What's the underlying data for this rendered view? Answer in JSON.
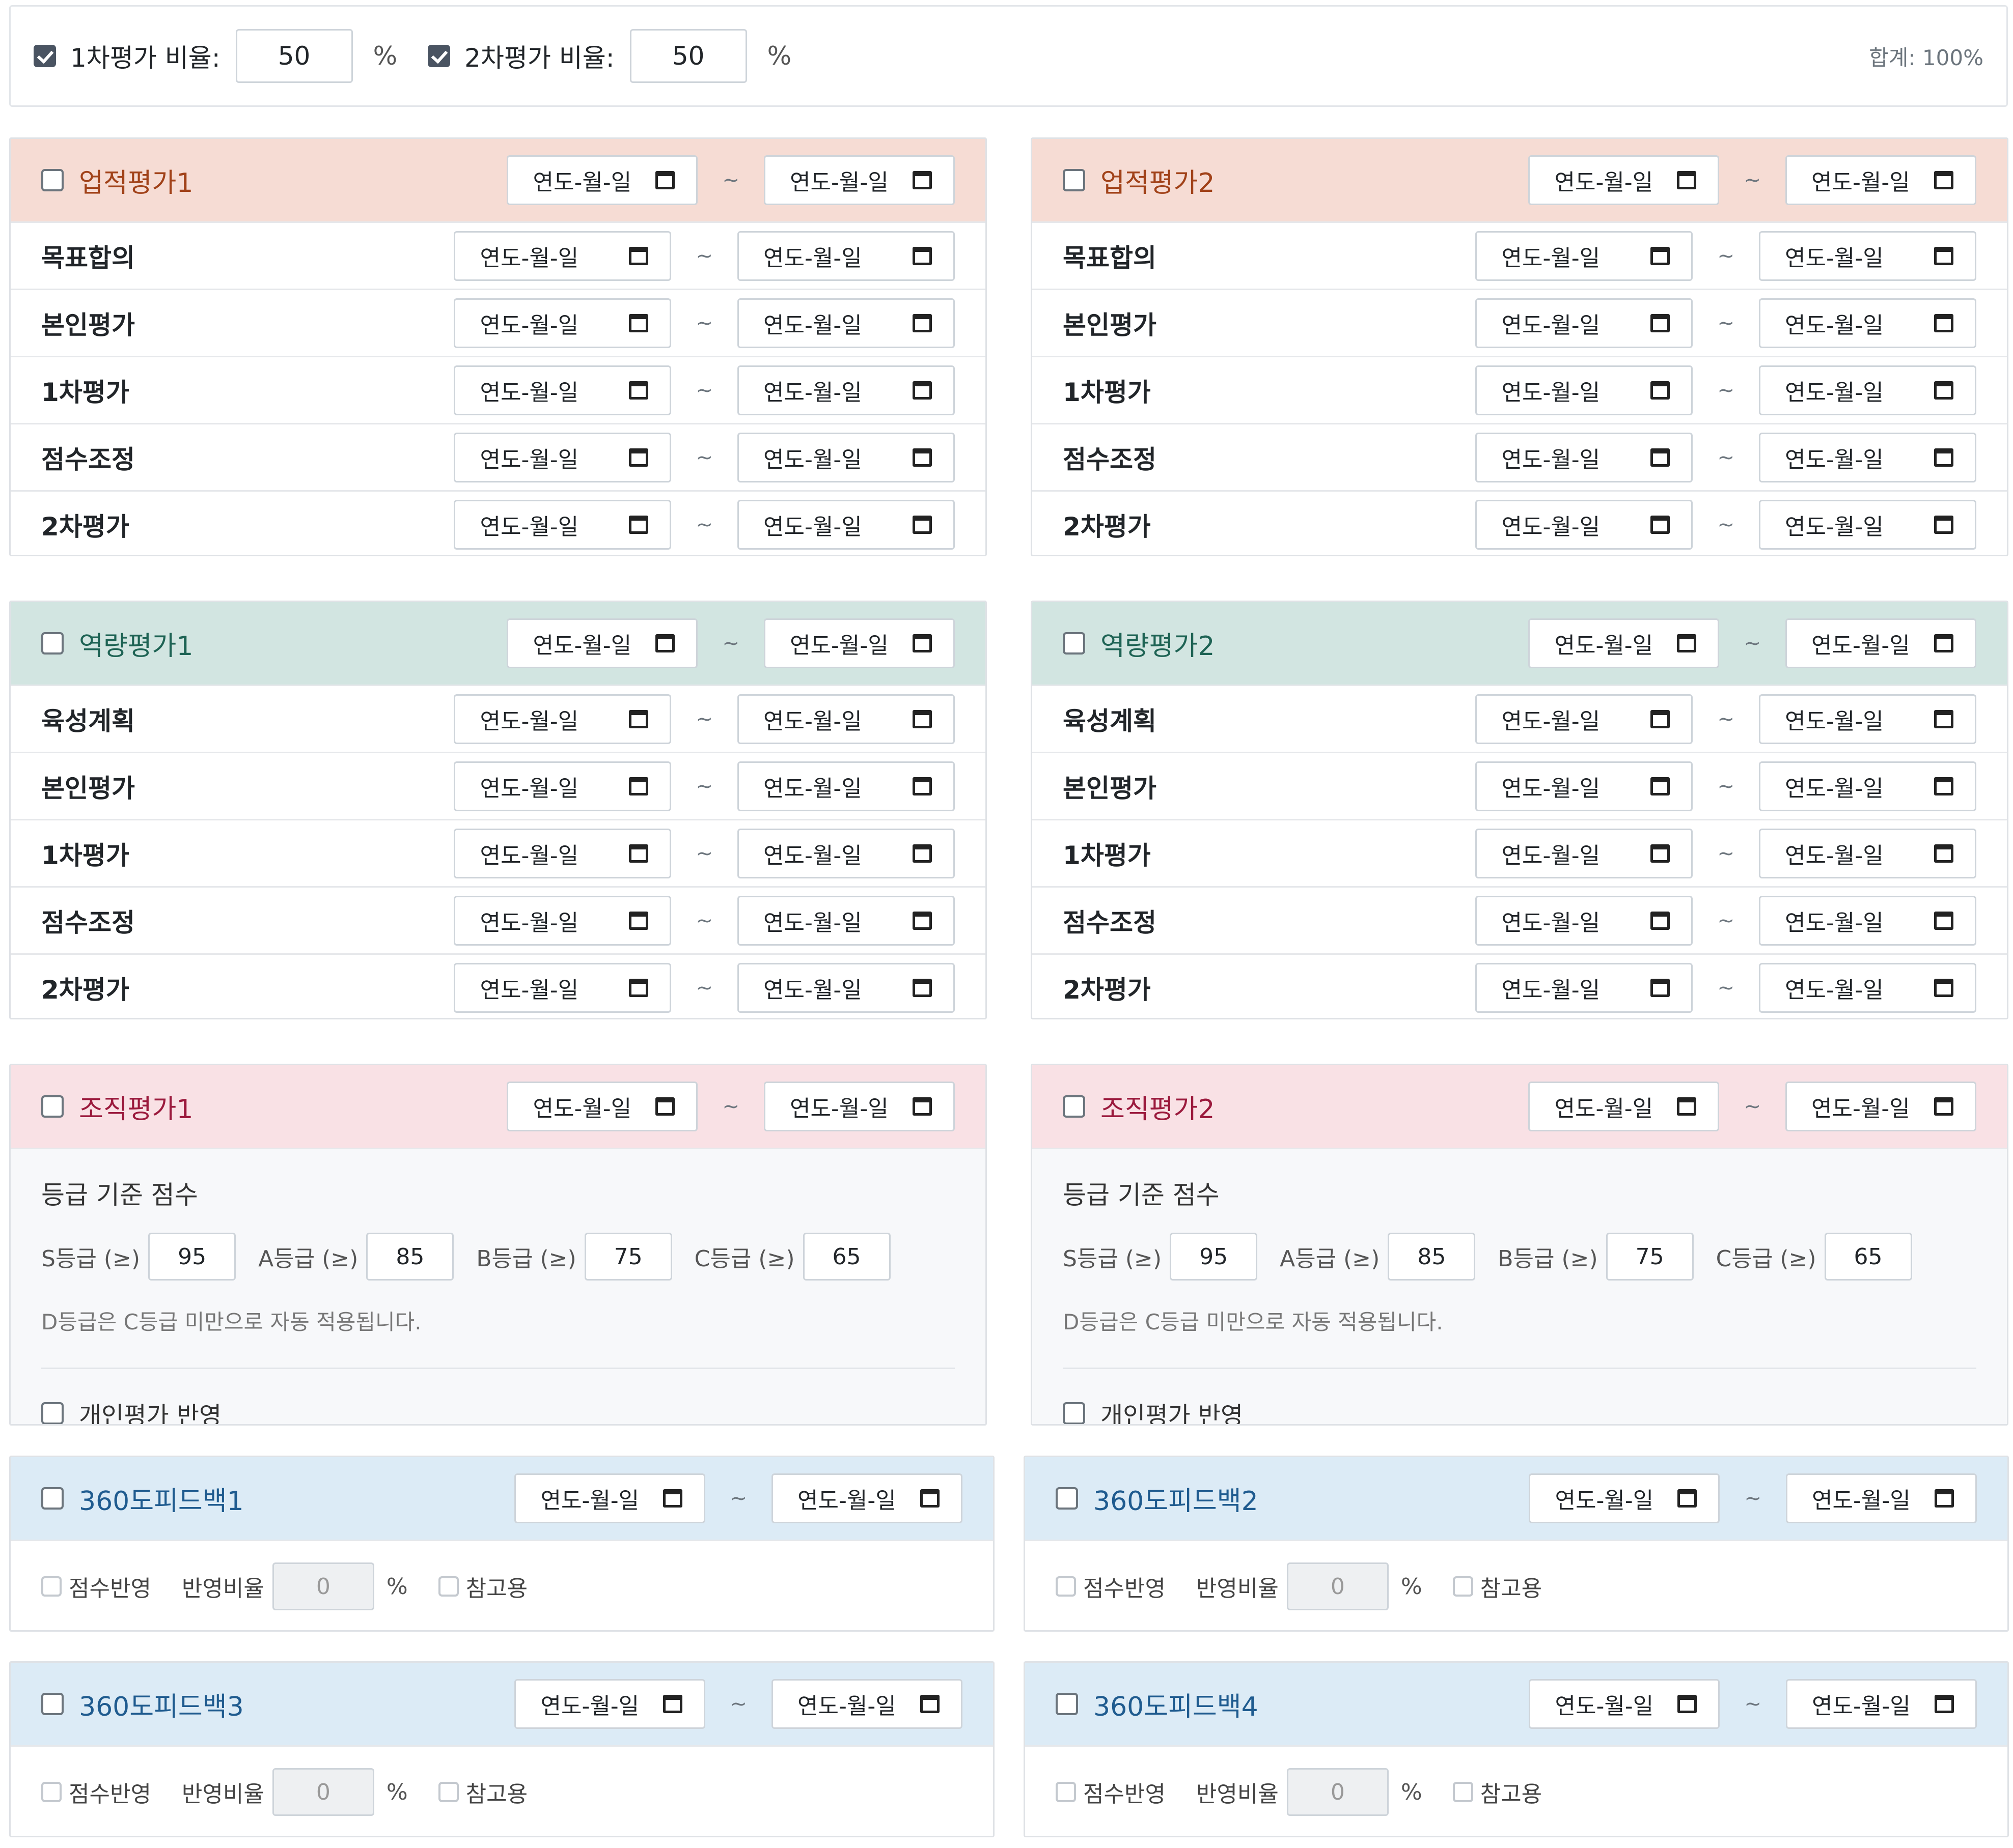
{
  "ratio": {
    "first": {
      "checked": true,
      "label": "1차평가 비율:",
      "value": "50",
      "unit": "%"
    },
    "second": {
      "checked": true,
      "label": "2차평가 비율:",
      "value": "50",
      "unit": "%"
    },
    "total": "합계: 100%"
  },
  "date_placeholder": "연도-월-일",
  "tilde": "~",
  "sections": {
    "perf1": {
      "title": "업적평가1",
      "rows": [
        "목표합의",
        "본인평가",
        "1차평가",
        "점수조정",
        "2차평가"
      ]
    },
    "perf2": {
      "title": "업적평가2",
      "rows": [
        "목표합의",
        "본인평가",
        "1차평가",
        "점수조정",
        "2차평가"
      ]
    },
    "comp1": {
      "title": "역량평가1",
      "rows": [
        "육성계획",
        "본인평가",
        "1차평가",
        "점수조정",
        "2차평가"
      ]
    },
    "comp2": {
      "title": "역량평가2",
      "rows": [
        "육성계획",
        "본인평가",
        "1차평가",
        "점수조정",
        "2차평가"
      ]
    }
  },
  "org": {
    "org1": {
      "title": "조직평가1"
    },
    "org2": {
      "title": "조직평가2"
    },
    "grade_title": "등급 기준 점수",
    "grades": [
      {
        "label": "S등급 (≥)",
        "value": "95"
      },
      {
        "label": "A등급 (≥)",
        "value": "85"
      },
      {
        "label": "B등급 (≥)",
        "value": "75"
      },
      {
        "label": "C등급 (≥)",
        "value": "65"
      }
    ],
    "note": "D등급은 C등급 미만으로 자동 적용됩니다.",
    "personal_label": "개인평가 반영"
  },
  "feedback": {
    "fb1": {
      "title": "360도피드백1"
    },
    "fb2": {
      "title": "360도피드백2"
    },
    "fb3": {
      "title": "360도피드백3"
    },
    "fb4": {
      "title": "360도피드백4"
    },
    "score_label": "점수반영",
    "ratio_label": "반영비율",
    "ratio_value": "0",
    "unit": "%",
    "ref_label": "참고용"
  }
}
